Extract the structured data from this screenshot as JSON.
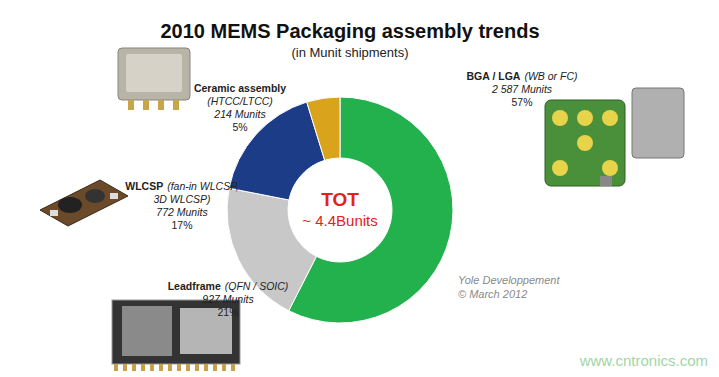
{
  "chart_data": {
    "type": "pie",
    "title": "2010 MEMS Packaging assembly trends",
    "subtitle": "(in Munit shipments)",
    "categories": [
      "BGA / LGA",
      "Leadframe",
      "WLCSP",
      "Ceramic assembly"
    ],
    "category_details": [
      [
        "(WB or FC)"
      ],
      [
        "(QFN / SOIC)"
      ],
      [
        "(fan-in WLCSP,",
        "3D WLCSP)"
      ],
      [
        "(HTCC/LTCC)"
      ]
    ],
    "values": [
      2587,
      927,
      772,
      214
    ],
    "value_labels": [
      "2 587 Munits",
      "927 Munits",
      "772 Munits",
      "214 Munits"
    ],
    "percentages": [
      57,
      21,
      17,
      5
    ],
    "percentage_labels": [
      "57%",
      "21%",
      "17%",
      "5%"
    ],
    "colors": [
      "#22b14c",
      "#c8c8c8",
      "#1c3c88",
      "#d9a31c"
    ],
    "data_labels": true,
    "center_text": [
      "TOT",
      "~ 4.4Bunits"
    ],
    "source": [
      "Yole Developpement",
      "© March 2012"
    ],
    "watermark": "www.cntronics.com"
  }
}
